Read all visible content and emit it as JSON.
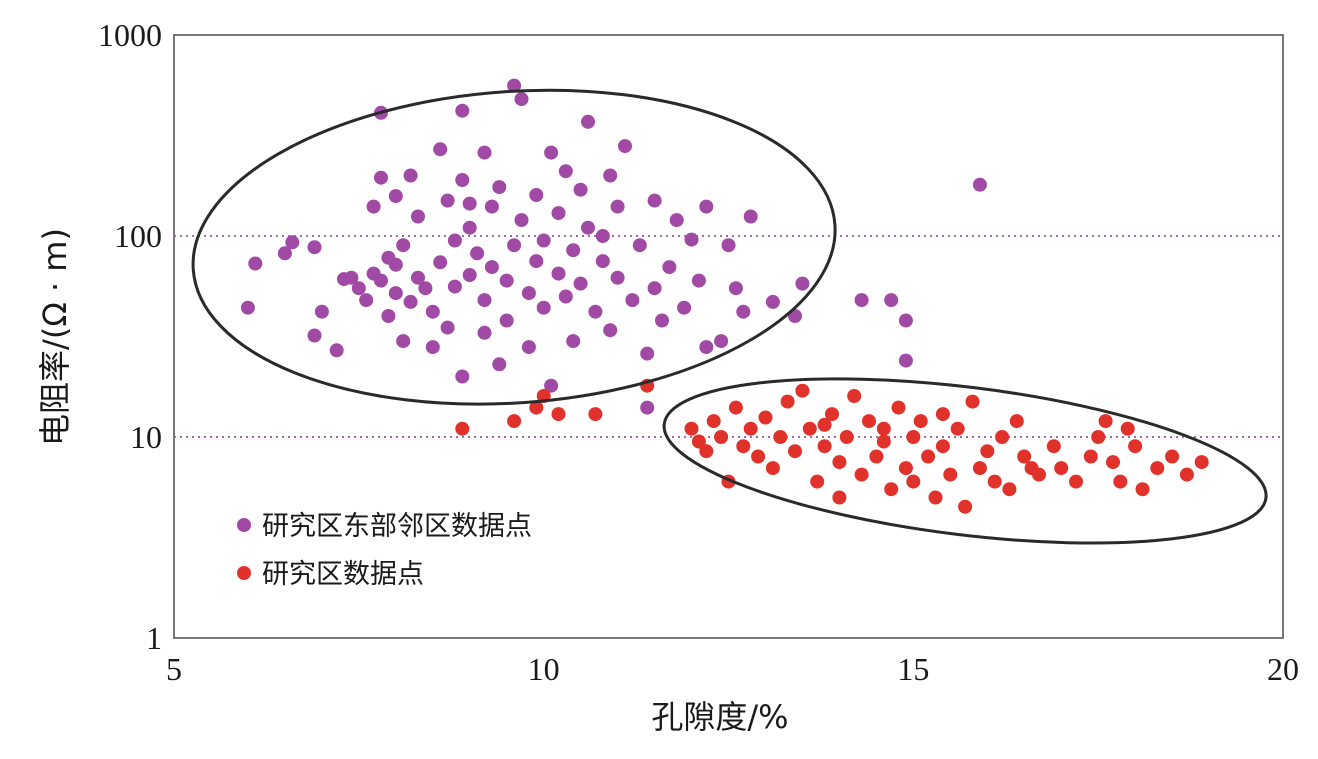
{
  "chart_data": {
    "type": "scatter",
    "xlabel": "孔隙度/%",
    "ylabel": "电阻率/(Ω · m)",
    "xlim": [
      5,
      20
    ],
    "ylim": [
      1,
      1000
    ],
    "yscale": "log",
    "xticks": [
      "5",
      "10",
      "15",
      "20"
    ],
    "yticks": [
      "1",
      "10",
      "100",
      "1000"
    ],
    "reference_lines_y": [
      10,
      100
    ],
    "legend_position": "bottom-left",
    "colors": {
      "east": "#a04aa6",
      "study": "#e0322a",
      "refline": "#a06aa8",
      "ellipse": "#2a2a2a"
    },
    "ellipses": [
      {
        "cx": 9.6,
        "cy": 88,
        "rx_data": 4.35,
        "y_span": [
          17.5,
          620
        ],
        "tilt_deg": -4
      },
      {
        "cx": 15.7,
        "cy": 7.6,
        "rx_data": 4.1,
        "y_span": [
          3.5,
          19
        ],
        "tilt_deg": 7
      }
    ],
    "series": [
      {
        "name": "研究区东部邻区数据点",
        "color": "#a04aa6",
        "points": [
          [
            6.0,
            44
          ],
          [
            6.1,
            73
          ],
          [
            6.5,
            82
          ],
          [
            6.6,
            93
          ],
          [
            6.9,
            88
          ],
          [
            6.9,
            32
          ],
          [
            7.0,
            42
          ],
          [
            7.2,
            27
          ],
          [
            7.3,
            61
          ],
          [
            7.4,
            62
          ],
          [
            7.5,
            55
          ],
          [
            7.6,
            48
          ],
          [
            7.7,
            65
          ],
          [
            7.7,
            140
          ],
          [
            7.8,
            410
          ],
          [
            7.8,
            195
          ],
          [
            7.8,
            60
          ],
          [
            7.9,
            78
          ],
          [
            7.9,
            40
          ],
          [
            8.0,
            158
          ],
          [
            8.0,
            72
          ],
          [
            8.0,
            52
          ],
          [
            8.1,
            90
          ],
          [
            8.1,
            30
          ],
          [
            8.2,
            200
          ],
          [
            8.3,
            62
          ],
          [
            8.3,
            125
          ],
          [
            8.4,
            55
          ],
          [
            8.5,
            42
          ],
          [
            8.5,
            28
          ],
          [
            8.6,
            270
          ],
          [
            8.6,
            74
          ],
          [
            8.7,
            35
          ],
          [
            8.7,
            150
          ],
          [
            8.8,
            95
          ],
          [
            8.8,
            56
          ],
          [
            8.9,
            420
          ],
          [
            8.9,
            190
          ],
          [
            8.9,
            20
          ],
          [
            9.0,
            64
          ],
          [
            9.0,
            110
          ],
          [
            9.1,
            82
          ],
          [
            9.2,
            48
          ],
          [
            9.2,
            260
          ],
          [
            9.3,
            140
          ],
          [
            9.3,
            70
          ],
          [
            9.4,
            23
          ],
          [
            9.4,
            175
          ],
          [
            9.5,
            60
          ],
          [
            9.5,
            38
          ],
          [
            9.6,
            560
          ],
          [
            9.6,
            90
          ],
          [
            9.7,
            480
          ],
          [
            9.7,
            120
          ],
          [
            9.8,
            52
          ],
          [
            9.8,
            28
          ],
          [
            9.9,
            75
          ],
          [
            9.9,
            160
          ],
          [
            10.0,
            44
          ],
          [
            10.0,
            95
          ],
          [
            10.1,
            260
          ],
          [
            10.1,
            18
          ],
          [
            10.2,
            65
          ],
          [
            10.2,
            130
          ],
          [
            10.3,
            50
          ],
          [
            10.3,
            210
          ],
          [
            10.4,
            85
          ],
          [
            10.4,
            30
          ],
          [
            10.5,
            170
          ],
          [
            10.5,
            58
          ],
          [
            10.6,
            370
          ],
          [
            10.6,
            110
          ],
          [
            10.7,
            42
          ],
          [
            10.8,
            75
          ],
          [
            10.9,
            200
          ],
          [
            10.9,
            34
          ],
          [
            11.0,
            140
          ],
          [
            11.0,
            62
          ],
          [
            11.1,
            280
          ],
          [
            11.2,
            48
          ],
          [
            11.3,
            90
          ],
          [
            11.4,
            26
          ],
          [
            11.5,
            150
          ],
          [
            11.5,
            55
          ],
          [
            11.6,
            38
          ],
          [
            11.7,
            70
          ],
          [
            11.8,
            120
          ],
          [
            11.9,
            44
          ],
          [
            12.0,
            96
          ],
          [
            12.1,
            60
          ],
          [
            12.2,
            140
          ],
          [
            12.2,
            28
          ],
          [
            12.4,
            30
          ],
          [
            12.6,
            55
          ],
          [
            12.7,
            42
          ],
          [
            12.8,
            125
          ],
          [
            12.5,
            90
          ],
          [
            13.1,
            47
          ],
          [
            13.4,
            40
          ],
          [
            13.5,
            58
          ],
          [
            14.3,
            48
          ],
          [
            14.7,
            48
          ],
          [
            14.9,
            38
          ],
          [
            14.9,
            24
          ],
          [
            15.9,
            180
          ],
          [
            11.4,
            14
          ],
          [
            9.2,
            33
          ],
          [
            8.2,
            47
          ],
          [
            10.8,
            100
          ],
          [
            9.0,
            145
          ]
        ]
      },
      {
        "name": "研究区数据点",
        "color": "#e0322a",
        "points": [
          [
            8.9,
            11
          ],
          [
            9.6,
            12
          ],
          [
            9.9,
            14
          ],
          [
            10.0,
            16
          ],
          [
            10.2,
            13
          ],
          [
            10.7,
            13
          ],
          [
            11.4,
            18
          ],
          [
            12.0,
            11
          ],
          [
            12.1,
            9.5
          ],
          [
            12.2,
            8.5
          ],
          [
            12.3,
            12
          ],
          [
            12.4,
            10
          ],
          [
            12.5,
            6
          ],
          [
            12.6,
            14
          ],
          [
            12.7,
            9
          ],
          [
            12.8,
            11
          ],
          [
            12.9,
            8
          ],
          [
            13.0,
            12.5
          ],
          [
            13.1,
            7
          ],
          [
            13.2,
            10
          ],
          [
            13.3,
            15
          ],
          [
            13.4,
            8.5
          ],
          [
            13.5,
            17
          ],
          [
            13.6,
            11
          ],
          [
            13.7,
            6
          ],
          [
            13.8,
            9
          ],
          [
            13.9,
            13
          ],
          [
            14.0,
            7.5
          ],
          [
            14.0,
            5
          ],
          [
            14.1,
            10
          ],
          [
            14.2,
            16
          ],
          [
            14.3,
            6.5
          ],
          [
            14.4,
            12
          ],
          [
            14.5,
            8
          ],
          [
            14.6,
            9.5
          ],
          [
            14.7,
            5.5
          ],
          [
            14.8,
            14
          ],
          [
            14.9,
            7
          ],
          [
            15.0,
            10
          ],
          [
            15.0,
            6
          ],
          [
            15.1,
            12
          ],
          [
            15.2,
            8
          ],
          [
            15.3,
            5
          ],
          [
            15.4,
            9
          ],
          [
            15.5,
            6.5
          ],
          [
            15.6,
            11
          ],
          [
            15.7,
            4.5
          ],
          [
            15.8,
            15
          ],
          [
            15.9,
            7
          ],
          [
            16.0,
            8.5
          ],
          [
            16.1,
            6
          ],
          [
            16.2,
            10
          ],
          [
            16.3,
            5.5
          ],
          [
            16.4,
            12
          ],
          [
            16.5,
            8
          ],
          [
            16.7,
            6.5
          ],
          [
            16.9,
            9
          ],
          [
            17.0,
            7
          ],
          [
            17.2,
            6
          ],
          [
            17.4,
            8
          ],
          [
            17.5,
            10
          ],
          [
            17.6,
            12
          ],
          [
            17.7,
            7.5
          ],
          [
            17.8,
            6
          ],
          [
            17.9,
            11
          ],
          [
            18.0,
            9
          ],
          [
            18.1,
            5.5
          ],
          [
            18.3,
            7
          ],
          [
            18.5,
            8
          ],
          [
            18.7,
            6.5
          ],
          [
            18.9,
            7.5
          ],
          [
            16.6,
            7
          ],
          [
            14.6,
            11
          ],
          [
            15.4,
            13
          ],
          [
            13.8,
            11.5
          ]
        ]
      }
    ]
  }
}
